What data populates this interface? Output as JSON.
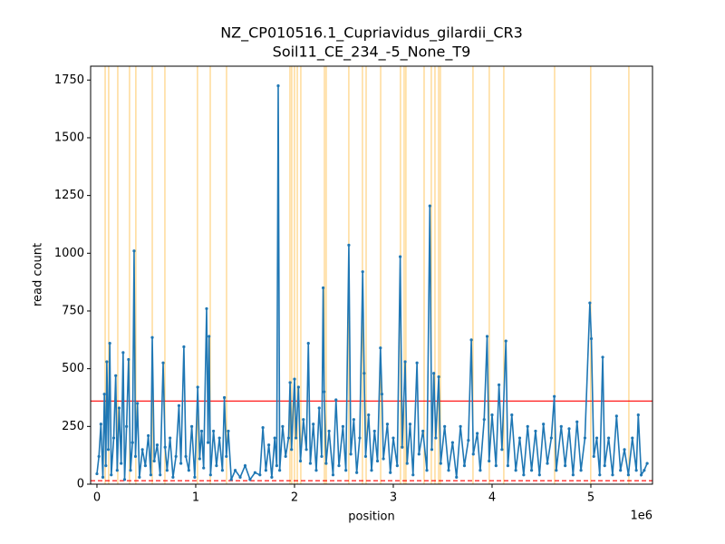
{
  "chart_data": {
    "type": "line",
    "title": [
      "NZ_CP010516.1_Cupriavidus_gilardii_CR3",
      "Soil11_CE_234_-5_None_T9"
    ],
    "xlabel": "position",
    "ylabel": "read count",
    "x_offset_label": "1e6",
    "color": "#1f77b4",
    "x": [
      0,
      20000,
      40000,
      60000,
      75000,
      90000,
      100000,
      115000,
      130000,
      145000,
      170000,
      190000,
      205000,
      225000,
      245000,
      265000,
      280000,
      300000,
      320000,
      340000,
      360000,
      376000,
      390000,
      410000,
      430000,
      460000,
      490000,
      520000,
      545000,
      560000,
      580000,
      610000,
      640000,
      670000,
      690000,
      710000,
      740000,
      770000,
      800000,
      830000,
      850000,
      880000,
      900000,
      930000,
      960000,
      990000,
      1020000,
      1040000,
      1060000,
      1080000,
      1110000,
      1125000,
      1135000,
      1150000,
      1180000,
      1210000,
      1240000,
      1270000,
      1290000,
      1310000,
      1330000,
      1360000,
      1400000,
      1450000,
      1500000,
      1550000,
      1600000,
      1650000,
      1680000,
      1710000,
      1740000,
      1770000,
      1800000,
      1820000,
      1835000,
      1850000,
      1880000,
      1910000,
      1940000,
      1955000,
      1970000,
      2000000,
      2015000,
      2040000,
      2060000,
      2090000,
      2120000,
      2140000,
      2160000,
      2190000,
      2220000,
      2250000,
      2275000,
      2290000,
      2300000,
      2320000,
      2350000,
      2390000,
      2420000,
      2450000,
      2490000,
      2520000,
      2550000,
      2570000,
      2600000,
      2630000,
      2660000,
      2690000,
      2705000,
      2720000,
      2750000,
      2780000,
      2810000,
      2840000,
      2870000,
      2885000,
      2900000,
      2940000,
      2970000,
      3000000,
      3040000,
      3070000,
      3090000,
      3120000,
      3140000,
      3170000,
      3200000,
      3240000,
      3260000,
      3300000,
      3340000,
      3370000,
      3390000,
      3410000,
      3430000,
      3460000,
      3480000,
      3520000,
      3560000,
      3600000,
      3640000,
      3680000,
      3720000,
      3760000,
      3790000,
      3810000,
      3850000,
      3880000,
      3920000,
      3950000,
      3970000,
      4000000,
      4040000,
      4070000,
      4100000,
      4140000,
      4160000,
      4200000,
      4240000,
      4280000,
      4320000,
      4360000,
      4400000,
      4440000,
      4480000,
      4520000,
      4560000,
      4600000,
      4630000,
      4650000,
      4700000,
      4740000,
      4780000,
      4820000,
      4860000,
      4900000,
      4940000,
      4990000,
      5005000,
      5030000,
      5060000,
      5090000,
      5120000,
      5140000,
      5180000,
      5220000,
      5260000,
      5300000,
      5340000,
      5380000,
      5420000,
      5460000,
      5480000,
      5510000,
      5540000,
      5570000
    ],
    "values": [
      45,
      120,
      260,
      30,
      390,
      80,
      530,
      150,
      610,
      40,
      200,
      470,
      60,
      330,
      90,
      570,
      20,
      250,
      540,
      60,
      180,
      1010,
      120,
      350,
      30,
      150,
      80,
      210,
      40,
      635,
      100,
      170,
      40,
      525,
      160,
      60,
      200,
      30,
      120,
      340,
      90,
      595,
      120,
      60,
      250,
      30,
      420,
      110,
      230,
      70,
      760,
      180,
      640,
      40,
      230,
      80,
      200,
      60,
      375,
      120,
      230,
      20,
      60,
      30,
      80,
      20,
      50,
      40,
      245,
      60,
      170,
      30,
      200,
      80,
      1725,
      60,
      250,
      120,
      200,
      440,
      150,
      455,
      200,
      420,
      100,
      280,
      150,
      610,
      90,
      260,
      60,
      330,
      120,
      850,
      400,
      90,
      230,
      40,
      365,
      80,
      250,
      60,
      1035,
      130,
      280,
      50,
      200,
      920,
      480,
      120,
      300,
      60,
      230,
      100,
      590,
      390,
      110,
      260,
      50,
      200,
      80,
      985,
      160,
      530,
      90,
      260,
      40,
      525,
      130,
      230,
      60,
      1205,
      150,
      480,
      200,
      465,
      90,
      250,
      60,
      180,
      30,
      250,
      80,
      190,
      625,
      130,
      220,
      60,
      280,
      640,
      100,
      300,
      80,
      430,
      150,
      620,
      80,
      300,
      60,
      200,
      40,
      250,
      60,
      230,
      40,
      260,
      90,
      200,
      380,
      60,
      250,
      80,
      240,
      40,
      270,
      60,
      200,
      785,
      630,
      120,
      200,
      40,
      550,
      80,
      200,
      40,
      295,
      60,
      150,
      40,
      200,
      60,
      300,
      40,
      60,
      90
    ],
    "vlines": {
      "color": "orange",
      "x": [
        83000,
        119000,
        211000,
        330000,
        394000,
        560000,
        688000,
        1018000,
        1147000,
        1312000,
        1954000,
        1972000,
        2000000,
        2028000,
        2064000,
        2303000,
        2321000,
        2550000,
        2688000,
        2725000,
        2872000,
        3073000,
        3110000,
        3128000,
        3312000,
        3385000,
        3422000,
        3459000,
        3477000,
        3807000,
        3972000,
        4119000,
        4633000,
        4999000,
        5385000
      ]
    },
    "hlines": [
      {
        "y": 360,
        "color": "red",
        "style": "solid"
      },
      {
        "y": 15,
        "color": "red",
        "style": "dashed"
      }
    ],
    "xlim": [
      -64000,
      5624000
    ],
    "ylim": [
      0,
      1810
    ],
    "xticks": [
      {
        "value": 0,
        "label": "0"
      },
      {
        "value": 1000000,
        "label": "1"
      },
      {
        "value": 2000000,
        "label": "2"
      },
      {
        "value": 3000000,
        "label": "3"
      },
      {
        "value": 4000000,
        "label": "4"
      },
      {
        "value": 5000000,
        "label": "5"
      }
    ],
    "yticks": [
      0,
      250,
      500,
      750,
      1000,
      1250,
      1500,
      1750
    ]
  }
}
